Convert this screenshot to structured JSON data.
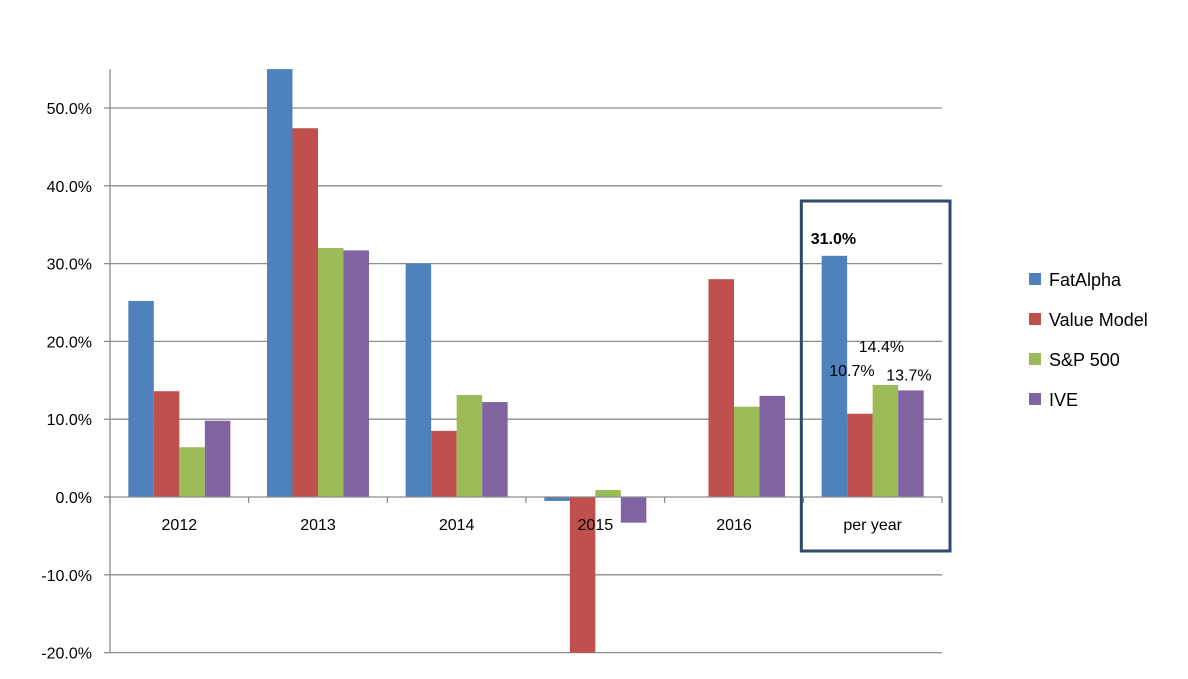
{
  "chart_data": {
    "type": "bar",
    "title": "",
    "xlabel": "",
    "ylabel": "",
    "categories": [
      "2012",
      "2013",
      "2014",
      "2015",
      "2016",
      "per year"
    ],
    "ylim": [
      -20,
      55
    ],
    "y_ticks": [
      50,
      40,
      30,
      20,
      10,
      0,
      -10,
      -20
    ],
    "y_tick_labels": [
      "50.0%",
      "40.0%",
      "30.0%",
      "20.0%",
      "10.0%",
      "0.0%",
      "-10.0%",
      "-20.0%"
    ],
    "grid": true,
    "legend_position": "right",
    "series": [
      {
        "name": "FatAlpha",
        "color": "#4F81BD",
        "values": [
          25.2,
          55.0,
          30.0,
          -0.5,
          0.0,
          31.0
        ]
      },
      {
        "name": "Value Model",
        "color": "#C0504D",
        "values": [
          13.6,
          47.4,
          8.5,
          -20.0,
          28.0,
          10.7
        ]
      },
      {
        "name": "S&P 500",
        "color": "#9BBB59",
        "values": [
          6.4,
          32.0,
          13.1,
          0.9,
          11.6,
          14.4
        ]
      },
      {
        "name": "IVE",
        "color": "#8064A2",
        "values": [
          9.8,
          31.7,
          12.2,
          -3.3,
          13.0,
          13.7
        ]
      }
    ],
    "data_labels": [
      {
        "text": "31.0%",
        "series": 0,
        "category": 5,
        "bold": true
      },
      {
        "text": "10.7%",
        "series": 1,
        "category": 5,
        "bold": false
      },
      {
        "text": "14.4%",
        "series": 2,
        "category": 5,
        "bold": false
      },
      {
        "text": "13.7%",
        "series": 3,
        "category": 5,
        "bold": false
      }
    ],
    "highlight": {
      "category": 5,
      "color": "#2E4A6B"
    }
  }
}
